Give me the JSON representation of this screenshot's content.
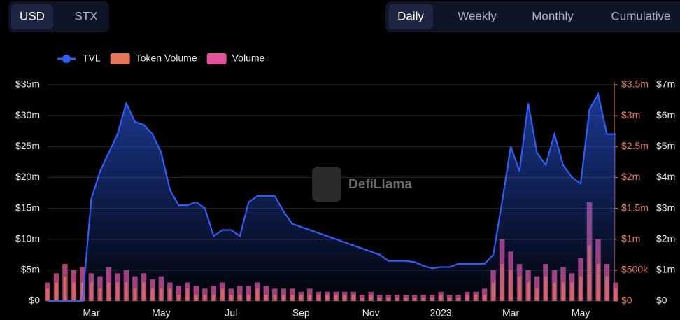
{
  "currency_tabs": [
    "USD",
    "STX"
  ],
  "period_tabs": [
    "Daily",
    "Weekly",
    "Monthly",
    "Cumulative"
  ],
  "watermark": "DefiLlama",
  "chart_data": {
    "type": "line",
    "categories": [
      null,
      null,
      null,
      null,
      null,
      "Mar",
      null,
      null,
      null,
      null,
      null,
      null,
      null,
      "May",
      null,
      null,
      null,
      null,
      null,
      null,
      null,
      "Jul",
      null,
      null,
      null,
      null,
      null,
      null,
      null,
      "Sep",
      null,
      null,
      null,
      null,
      null,
      null,
      null,
      "Nov",
      null,
      null,
      null,
      null,
      null,
      null,
      null,
      "2023",
      null,
      null,
      null,
      null,
      null,
      null,
      null,
      "Mar",
      null,
      null,
      null,
      null,
      null,
      null,
      null,
      "May",
      null,
      null,
      null,
      null
    ],
    "series": [
      {
        "name": "TVL",
        "color": "#2f5ef5",
        "type": "line",
        "axis": "y",
        "values": [
          0,
          0,
          0,
          0,
          0,
          16.5,
          21,
          24,
          27,
          32,
          29,
          28.5,
          27,
          24,
          18,
          15.5,
          15.5,
          16,
          15,
          10.5,
          11.5,
          11.5,
          10.5,
          16,
          17,
          17,
          17,
          14.5,
          12.5,
          12,
          11.5,
          11,
          10.5,
          10,
          9.5,
          9,
          8.5,
          8,
          7.5,
          6.5,
          6.5,
          6.5,
          6.3,
          5.7,
          5.3,
          5.5,
          5.5,
          6,
          6,
          6,
          6,
          7.5,
          16,
          25,
          21,
          32,
          24,
          22,
          27,
          22,
          20,
          19,
          31,
          33.5,
          27,
          27
        ]
      },
      {
        "name": "Token Volume",
        "color": "#e5765a",
        "type": "bar",
        "axis": "y2",
        "values": [
          0.2,
          0.3,
          0.4,
          0.3,
          0.3,
          0.3,
          0.2,
          0.3,
          0.3,
          0.3,
          0.2,
          0.3,
          0.2,
          0.2,
          0.2,
          0.1,
          0.2,
          0.1,
          0.1,
          0.1,
          0.2,
          0.1,
          0.1,
          0.1,
          0.2,
          0.1,
          0.1,
          0.1,
          0.1,
          0.1,
          0.1,
          0.1,
          0.1,
          0.1,
          0.1,
          0.1,
          0.05,
          0.1,
          0.05,
          0.05,
          0.05,
          0.05,
          0.05,
          0.05,
          0.05,
          0.1,
          0.05,
          0.05,
          0.1,
          0.1,
          0.1,
          0.3,
          0.6,
          0.5,
          0.4,
          0.3,
          0.2,
          0.4,
          0.3,
          0.3,
          0.3,
          0.4,
          0.9,
          0.6,
          0.4,
          0.2
        ]
      },
      {
        "name": "Volume",
        "color": "#e0559a",
        "type": "bar",
        "axis": "y3",
        "values": [
          0.6,
          0.9,
          1.2,
          1.0,
          1.1,
          0.9,
          0.8,
          1.1,
          0.9,
          1.0,
          0.8,
          0.9,
          0.7,
          0.8,
          0.6,
          0.5,
          0.6,
          0.5,
          0.4,
          0.5,
          0.6,
          0.4,
          0.5,
          0.5,
          0.6,
          0.5,
          0.4,
          0.4,
          0.4,
          0.3,
          0.4,
          0.3,
          0.3,
          0.3,
          0.3,
          0.3,
          0.2,
          0.3,
          0.2,
          0.2,
          0.2,
          0.2,
          0.2,
          0.2,
          0.2,
          0.3,
          0.2,
          0.2,
          0.3,
          0.3,
          0.4,
          1.0,
          2.0,
          1.6,
          1.2,
          1.0,
          0.8,
          1.2,
          1.0,
          1.1,
          0.9,
          1.4,
          3.2,
          2.0,
          1.2,
          0.6
        ]
      }
    ],
    "ylim": [
      0,
      35
    ],
    "yticks": [
      {
        "value": 0,
        "label": "$0"
      },
      {
        "value": 5,
        "label": "$5m"
      },
      {
        "value": 10,
        "label": "$10m"
      },
      {
        "value": 15,
        "label": "$15m"
      },
      {
        "value": 20,
        "label": "$20m"
      },
      {
        "value": 25,
        "label": "$25m"
      },
      {
        "value": 30,
        "label": "$30m"
      },
      {
        "value": 35,
        "label": "$35m"
      }
    ],
    "y2lim": [
      0,
      3.5
    ],
    "y2ticks": [
      {
        "value": 0,
        "label": "$0"
      },
      {
        "value": 0.5,
        "label": "$500k"
      },
      {
        "value": 1,
        "label": "$1m"
      },
      {
        "value": 1.5,
        "label": "$1.5m"
      },
      {
        "value": 2,
        "label": "$2m"
      },
      {
        "value": 2.5,
        "label": "$2.5m"
      },
      {
        "value": 3,
        "label": "$3m"
      },
      {
        "value": 3.5,
        "label": "$3.5m"
      }
    ],
    "y3lim": [
      0,
      7
    ],
    "y3ticks": [
      {
        "value": 0,
        "label": "$0"
      },
      {
        "value": 1,
        "label": "$1m"
      },
      {
        "value": 2,
        "label": "$2m"
      },
      {
        "value": 3,
        "label": "$3m"
      },
      {
        "value": 4,
        "label": "$4m"
      },
      {
        "value": 5,
        "label": "$5m"
      },
      {
        "value": 6,
        "label": "$6m"
      },
      {
        "value": 7,
        "label": "$7m"
      }
    ],
    "grid": true,
    "legend": "top-left"
  }
}
